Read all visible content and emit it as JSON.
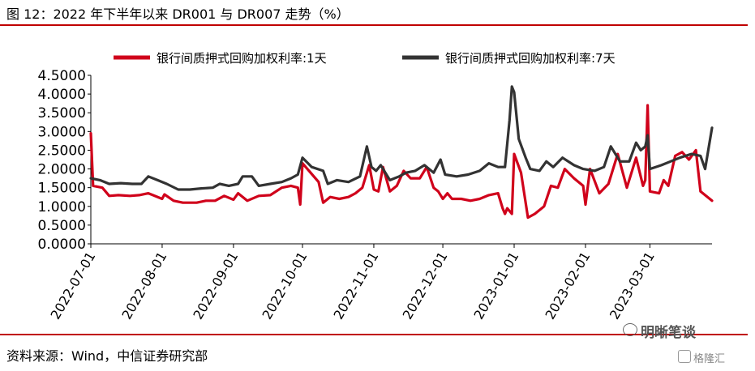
{
  "figure": {
    "title": "图 12：2022 年下半年以来 DR001 与 DR007 走势（%）",
    "source": "资料来源：Wind，中信证券研究部",
    "watermark": "明晰笔谈",
    "watermark2": "格隆汇"
  },
  "colors": {
    "series1": "#d0021b",
    "series2": "#333333",
    "rule": "#c00000"
  },
  "chart_data": {
    "type": "line",
    "title": "",
    "xlabel": "",
    "ylabel": "",
    "ylim": [
      0,
      4.5
    ],
    "yticks": [
      "0.0000",
      "0.5000",
      "1.0000",
      "1.5000",
      "2.0000",
      "2.5000",
      "3.0000",
      "3.5000",
      "4.0000",
      "4.5000"
    ],
    "xticks": [
      "2022-07-01",
      "2022-08-01",
      "2022-09-01",
      "2022-10-01",
      "2022-11-01",
      "2022-12-01",
      "2023-01-01",
      "2023-02-01",
      "2023-03-01"
    ],
    "x_range": [
      "2022-07-01",
      "2023-03-28"
    ],
    "legend_position": "top",
    "series": [
      {
        "name": "银行间质押式回购加权利率:1天",
        "points": [
          [
            "2022-07-01",
            2.95
          ],
          [
            "2022-07-02",
            1.55
          ],
          [
            "2022-07-06",
            1.5
          ],
          [
            "2022-07-09",
            1.28
          ],
          [
            "2022-07-13",
            1.3
          ],
          [
            "2022-07-18",
            1.28
          ],
          [
            "2022-07-22",
            1.3
          ],
          [
            "2022-07-26",
            1.35
          ],
          [
            "2022-07-28",
            1.3
          ],
          [
            "2022-08-01",
            1.2
          ],
          [
            "2022-08-02",
            1.32
          ],
          [
            "2022-08-06",
            1.15
          ],
          [
            "2022-08-10",
            1.1
          ],
          [
            "2022-08-16",
            1.1
          ],
          [
            "2022-08-20",
            1.15
          ],
          [
            "2022-08-24",
            1.15
          ],
          [
            "2022-08-28",
            1.28
          ],
          [
            "2022-09-01",
            1.18
          ],
          [
            "2022-09-03",
            1.35
          ],
          [
            "2022-09-07",
            1.15
          ],
          [
            "2022-09-12",
            1.28
          ],
          [
            "2022-09-17",
            1.3
          ],
          [
            "2022-09-22",
            1.5
          ],
          [
            "2022-09-26",
            1.55
          ],
          [
            "2022-09-29",
            1.5
          ],
          [
            "2022-09-30",
            1.05
          ],
          [
            "2022-10-01",
            2.15
          ],
          [
            "2022-10-08",
            1.65
          ],
          [
            "2022-10-10",
            1.1
          ],
          [
            "2022-10-13",
            1.25
          ],
          [
            "2022-10-17",
            1.2
          ],
          [
            "2022-10-21",
            1.25
          ],
          [
            "2022-10-24",
            1.35
          ],
          [
            "2022-10-27",
            1.5
          ],
          [
            "2022-10-30",
            2.1
          ],
          [
            "2022-11-01",
            1.45
          ],
          [
            "2022-11-03",
            1.4
          ],
          [
            "2022-11-05",
            2.05
          ],
          [
            "2022-11-08",
            1.4
          ],
          [
            "2022-11-11",
            1.55
          ],
          [
            "2022-11-14",
            1.95
          ],
          [
            "2022-11-17",
            1.75
          ],
          [
            "2022-11-21",
            1.75
          ],
          [
            "2022-11-24",
            2.05
          ],
          [
            "2022-11-27",
            1.5
          ],
          [
            "2022-11-29",
            1.4
          ],
          [
            "2022-12-01",
            1.2
          ],
          [
            "2022-12-03",
            1.35
          ],
          [
            "2022-12-05",
            1.2
          ],
          [
            "2022-12-09",
            1.2
          ],
          [
            "2022-12-13",
            1.15
          ],
          [
            "2022-12-17",
            1.2
          ],
          [
            "2022-12-21",
            1.3
          ],
          [
            "2022-12-25",
            1.35
          ],
          [
            "2022-12-27",
            0.95
          ],
          [
            "2022-12-28",
            0.8
          ],
          [
            "2022-12-29",
            0.95
          ],
          [
            "2022-12-31",
            0.8
          ],
          [
            "2023-01-01",
            2.4
          ],
          [
            "2023-01-04",
            1.9
          ],
          [
            "2023-01-07",
            0.7
          ],
          [
            "2023-01-10",
            0.8
          ],
          [
            "2023-01-14",
            1.0
          ],
          [
            "2023-01-17",
            1.55
          ],
          [
            "2023-01-20",
            1.5
          ],
          [
            "2023-01-23",
            2.0
          ],
          [
            "2023-01-27",
            1.75
          ],
          [
            "2023-01-31",
            1.55
          ],
          [
            "2023-02-01",
            1.05
          ],
          [
            "2023-02-03",
            2.0
          ],
          [
            "2023-02-07",
            1.35
          ],
          [
            "2023-02-11",
            1.6
          ],
          [
            "2023-02-15",
            2.4
          ],
          [
            "2023-02-19",
            1.5
          ],
          [
            "2023-02-23",
            2.3
          ],
          [
            "2023-02-26",
            1.55
          ],
          [
            "2023-02-27",
            1.7
          ],
          [
            "2023-02-28",
            3.7
          ],
          [
            "2023-03-01",
            1.4
          ],
          [
            "2023-03-05",
            1.35
          ],
          [
            "2023-03-07",
            1.7
          ],
          [
            "2023-03-09",
            1.55
          ],
          [
            "2023-03-12",
            2.35
          ],
          [
            "2023-03-15",
            2.45
          ],
          [
            "2023-03-18",
            2.25
          ],
          [
            "2023-03-21",
            2.5
          ],
          [
            "2023-03-23",
            1.4
          ],
          [
            "2023-03-28",
            1.15
          ]
        ]
      },
      {
        "name": "银行间质押式回购加权利率:7天",
        "points": [
          [
            "2022-07-01",
            1.75
          ],
          [
            "2022-07-05",
            1.7
          ],
          [
            "2022-07-09",
            1.6
          ],
          [
            "2022-07-14",
            1.62
          ],
          [
            "2022-07-19",
            1.6
          ],
          [
            "2022-07-23",
            1.6
          ],
          [
            "2022-07-26",
            1.8
          ],
          [
            "2022-07-30",
            1.7
          ],
          [
            "2022-08-03",
            1.6
          ],
          [
            "2022-08-08",
            1.45
          ],
          [
            "2022-08-13",
            1.45
          ],
          [
            "2022-08-18",
            1.48
          ],
          [
            "2022-08-23",
            1.5
          ],
          [
            "2022-08-26",
            1.6
          ],
          [
            "2022-08-30",
            1.55
          ],
          [
            "2022-09-03",
            1.6
          ],
          [
            "2022-09-05",
            1.8
          ],
          [
            "2022-09-09",
            1.8
          ],
          [
            "2022-09-12",
            1.55
          ],
          [
            "2022-09-17",
            1.6
          ],
          [
            "2022-09-22",
            1.65
          ],
          [
            "2022-09-26",
            1.75
          ],
          [
            "2022-09-29",
            1.85
          ],
          [
            "2022-10-01",
            2.3
          ],
          [
            "2022-10-05",
            2.05
          ],
          [
            "2022-10-10",
            1.95
          ],
          [
            "2022-10-12",
            1.6
          ],
          [
            "2022-10-16",
            1.7
          ],
          [
            "2022-10-21",
            1.65
          ],
          [
            "2022-10-26",
            1.8
          ],
          [
            "2022-10-29",
            2.6
          ],
          [
            "2022-10-31",
            2.05
          ],
          [
            "2022-11-02",
            1.95
          ],
          [
            "2022-11-04",
            2.1
          ],
          [
            "2022-11-08",
            1.7
          ],
          [
            "2022-11-12",
            1.8
          ],
          [
            "2022-11-15",
            1.9
          ],
          [
            "2022-11-19",
            1.95
          ],
          [
            "2022-11-23",
            2.1
          ],
          [
            "2022-11-27",
            1.9
          ],
          [
            "2022-11-30",
            2.25
          ],
          [
            "2022-12-02",
            1.85
          ],
          [
            "2022-12-07",
            1.8
          ],
          [
            "2022-12-12",
            1.85
          ],
          [
            "2022-12-17",
            1.95
          ],
          [
            "2022-12-21",
            2.15
          ],
          [
            "2022-12-25",
            2.05
          ],
          [
            "2022-12-28",
            2.05
          ],
          [
            "2022-12-30",
            3.3
          ],
          [
            "2022-12-31",
            4.2
          ],
          [
            "2023-01-01",
            4.05
          ],
          [
            "2023-01-03",
            2.8
          ],
          [
            "2023-01-06",
            2.3
          ],
          [
            "2023-01-08",
            2.0
          ],
          [
            "2023-01-12",
            1.95
          ],
          [
            "2023-01-15",
            2.2
          ],
          [
            "2023-01-18",
            2.05
          ],
          [
            "2023-01-22",
            2.3
          ],
          [
            "2023-01-27",
            2.1
          ],
          [
            "2023-01-31",
            2.0
          ],
          [
            "2023-02-05",
            1.95
          ],
          [
            "2023-02-09",
            2.05
          ],
          [
            "2023-02-12",
            2.6
          ],
          [
            "2023-02-16",
            2.2
          ],
          [
            "2023-02-20",
            2.2
          ],
          [
            "2023-02-23",
            2.7
          ],
          [
            "2023-02-25",
            2.5
          ],
          [
            "2023-02-27",
            2.6
          ],
          [
            "2023-02-28",
            2.9
          ],
          [
            "2023-03-01",
            2.0
          ],
          [
            "2023-03-06",
            2.1
          ],
          [
            "2023-03-10",
            2.2
          ],
          [
            "2023-03-14",
            2.3
          ],
          [
            "2023-03-19",
            2.4
          ],
          [
            "2023-03-23",
            2.35
          ],
          [
            "2023-03-25",
            2.0
          ],
          [
            "2023-03-28",
            3.1
          ]
        ]
      }
    ]
  }
}
